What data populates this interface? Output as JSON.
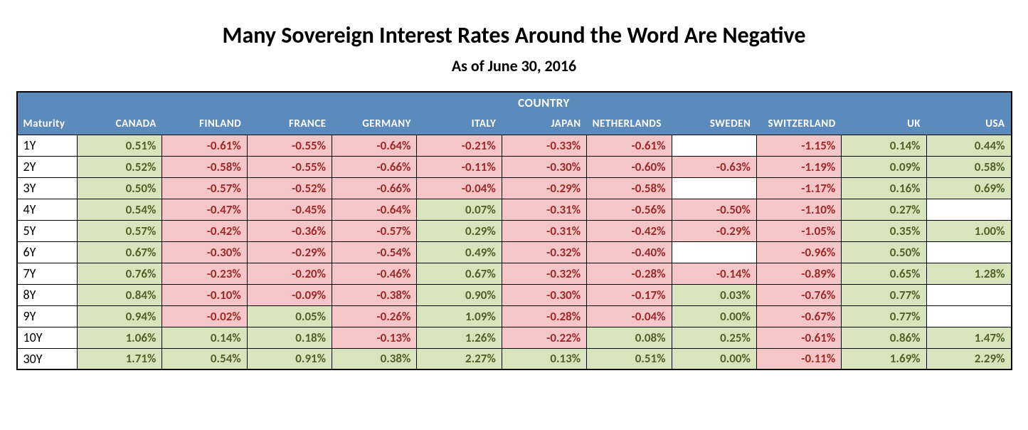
{
  "title": "Many Sovereign Interest Rates Around the Word Are Negative",
  "subtitle": "As of June 30, 2016",
  "super_header": "COUNTRY",
  "maturity_header": "Maturity",
  "columns": [
    "CANADA",
    "FINLAND",
    "FRANCE",
    "GERMANY",
    "ITALY",
    "JAPAN",
    "NETHERLANDS",
    "SWEDEN",
    "SWITZERLAND",
    "UK",
    "USA"
  ],
  "rows": [
    {
      "maturity": "1Y",
      "values": [
        "0.51%",
        "-0.61%",
        "-0.55%",
        "-0.64%",
        "-0.21%",
        "-0.33%",
        "-0.61%",
        "",
        "-1.15%",
        "0.14%",
        "0.44%"
      ]
    },
    {
      "maturity": "2Y",
      "values": [
        "0.52%",
        "-0.58%",
        "-0.55%",
        "-0.66%",
        "-0.11%",
        "-0.30%",
        "-0.60%",
        "-0.63%",
        "-1.19%",
        "0.09%",
        "0.58%"
      ]
    },
    {
      "maturity": "3Y",
      "values": [
        "0.50%",
        "-0.57%",
        "-0.52%",
        "-0.66%",
        "-0.04%",
        "-0.29%",
        "-0.58%",
        "",
        "-1.17%",
        "0.16%",
        "0.69%"
      ]
    },
    {
      "maturity": "4Y",
      "values": [
        "0.54%",
        "-0.47%",
        "-0.45%",
        "-0.64%",
        "0.07%",
        "-0.31%",
        "-0.56%",
        "-0.50%",
        "-1.10%",
        "0.27%",
        ""
      ]
    },
    {
      "maturity": "5Y",
      "values": [
        "0.57%",
        "-0.42%",
        "-0.36%",
        "-0.57%",
        "0.29%",
        "-0.31%",
        "-0.42%",
        "-0.29%",
        "-1.05%",
        "0.35%",
        "1.00%"
      ]
    },
    {
      "maturity": "6Y",
      "values": [
        "0.67%",
        "-0.30%",
        "-0.29%",
        "-0.54%",
        "0.49%",
        "-0.32%",
        "-0.40%",
        "",
        "-0.96%",
        "0.50%",
        ""
      ]
    },
    {
      "maturity": "7Y",
      "values": [
        "0.76%",
        "-0.23%",
        "-0.20%",
        "-0.46%",
        "0.67%",
        "-0.32%",
        "-0.28%",
        "-0.14%",
        "-0.89%",
        "0.65%",
        "1.28%"
      ]
    },
    {
      "maturity": "8Y",
      "values": [
        "0.84%",
        "-0.10%",
        "-0.09%",
        "-0.38%",
        "0.90%",
        "-0.30%",
        "-0.17%",
        "0.03%",
        "-0.76%",
        "0.77%",
        ""
      ]
    },
    {
      "maturity": "9Y",
      "values": [
        "0.94%",
        "-0.02%",
        "0.05%",
        "-0.26%",
        "1.09%",
        "-0.28%",
        "-0.04%",
        "0.00%",
        "-0.67%",
        "0.77%",
        ""
      ]
    },
    {
      "maturity": "10Y",
      "values": [
        "1.06%",
        "0.14%",
        "0.18%",
        "-0.13%",
        "1.26%",
        "-0.22%",
        "0.08%",
        "0.25%",
        "-0.61%",
        "0.86%",
        "1.47%"
      ]
    },
    {
      "maturity": "30Y",
      "values": [
        "1.71%",
        "0.54%",
        "0.91%",
        "0.38%",
        "2.27%",
        "0.13%",
        "0.51%",
        "0.00%",
        "-0.11%",
        "1.69%",
        "2.29%"
      ]
    }
  ],
  "styling": {
    "header_bg": "#5b8bbd",
    "header_fg": "#ffffff",
    "positive_bg": "#d7e4bc",
    "positive_fg": "#4f6228",
    "negative_bg": "#f4c6c8",
    "negative_fg": "#9c2a2a",
    "blank_bg": "#ffffff",
    "border_color": "#000000",
    "title_fontsize": 32,
    "subtitle_fontsize": 22,
    "header_fontsize": 15,
    "cell_fontsize": 17,
    "font_family": "Calibri"
  }
}
